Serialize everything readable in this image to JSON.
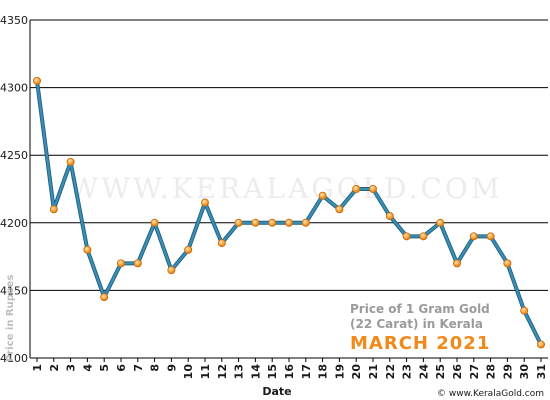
{
  "chart_data": {
    "type": "line",
    "title_line1": "Price of 1 Gram Gold",
    "title_line2": "(22 Carat) in Kerala",
    "subtitle": "MARCH 2021",
    "xlabel": "Date",
    "ylabel": "Price in Rupees",
    "watermark": "WWW.KERALAGOLD.COM",
    "credit": "© www.KeralaGold.com",
    "ylim": [
      4100,
      4350
    ],
    "yticks": [
      4100,
      4150,
      4200,
      4250,
      4300,
      4350
    ],
    "grid": true,
    "x": [
      "1",
      "2",
      "3",
      "4",
      "5",
      "6",
      "7",
      "8",
      "9",
      "10",
      "11",
      "12",
      "13",
      "14",
      "15",
      "16",
      "17",
      "18",
      "19",
      "20",
      "21",
      "22",
      "23",
      "24",
      "25",
      "26",
      "27",
      "28",
      "29",
      "30",
      "31"
    ],
    "series": [
      {
        "values": [
          4305,
          4210,
          4245,
          4180,
          4145,
          4170,
          4170,
          4200,
          4165,
          4180,
          4215,
          4185,
          4200,
          4200,
          4200,
          4200,
          4200,
          4220,
          4210,
          4225,
          4225,
          4205,
          4190,
          4190,
          4200,
          4170,
          4190,
          4190,
          4170,
          4135,
          4110
        ]
      }
    ],
    "colors": {
      "line": "#3a8fb7",
      "line_dark": "#1f5f7e",
      "marker": "#f7a43b",
      "marker_edge": "#c06a10",
      "grid": "#000000"
    }
  }
}
